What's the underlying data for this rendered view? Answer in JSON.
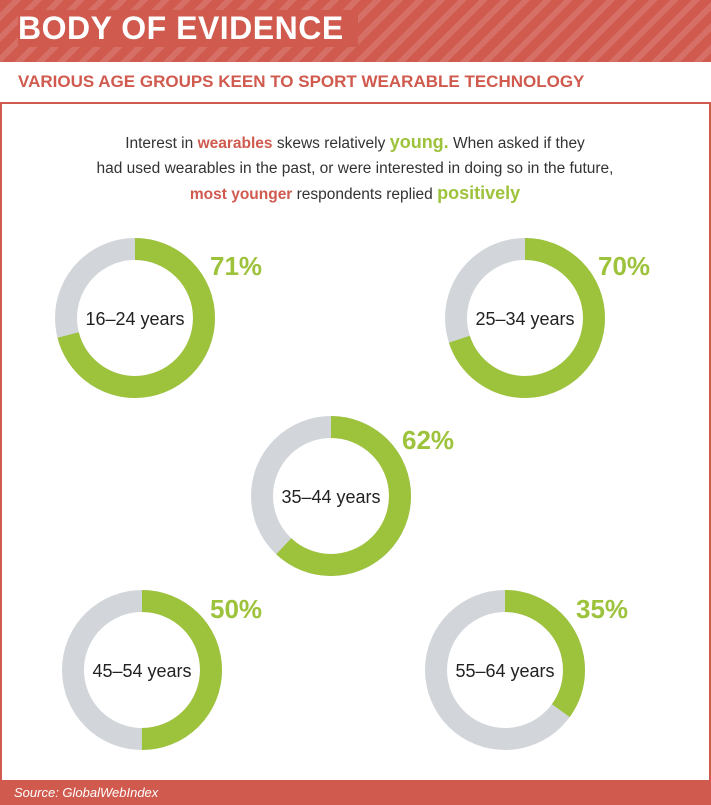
{
  "header": {
    "title": "BODY OF EVIDENCE"
  },
  "subtitle": "VARIOUS AGE GROUPS KEEN TO SPORT WEARABLE TECHNOLOGY",
  "intro": {
    "t1": "Interest in ",
    "t2": "wearables",
    "t3": " skews relatively ",
    "t4": "young.",
    "t5": " When asked if they",
    "t6": "had used wearables in the past, or were interested in doing so in the future,",
    "t7": "most younger",
    "t8": " respondents replied ",
    "t9": "positively"
  },
  "colors": {
    "accent": "#d05a4e",
    "positive": "#9dc23b",
    "track": "#d2d6da"
  },
  "chart_data": {
    "type": "pie",
    "categories": [
      "16–24 years",
      "25–34 years",
      "35–44 years",
      "45–54 years",
      "55–64 years"
    ],
    "values": [
      71,
      70,
      62,
      50,
      35
    ],
    "value_labels": [
      "71%",
      "70%",
      "62%",
      "50%",
      "35%"
    ],
    "ylim": [
      0,
      100
    ]
  },
  "footer": {
    "source": "Source: GlobalWebIndex"
  }
}
